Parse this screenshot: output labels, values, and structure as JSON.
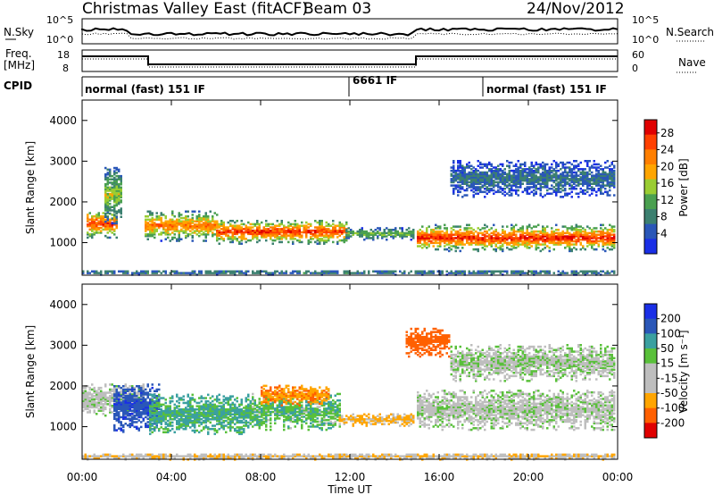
{
  "header": {
    "station": "Christmas Valley East (fitACF)",
    "beam": "Beam 03",
    "date": "24/Nov/2012"
  },
  "noise_panel": {
    "left_label": "N.Sky",
    "right_label": "N.Search",
    "ticks": [
      "10^5",
      "10^0"
    ]
  },
  "freq_panel": {
    "left_label_1": "Freq.",
    "left_label_2": "[MHz]",
    "right_label": "Nave",
    "left_ticks": [
      "18",
      "8"
    ],
    "right_ticks": [
      "60",
      "0"
    ]
  },
  "cpid_panel": {
    "label": "CPID",
    "segments": [
      {
        "text": "normal (fast) 151 IF",
        "start_hour": 0
      },
      {
        "text": "6661 IF",
        "start_hour": 12
      },
      {
        "text": "normal (fast) 151 IF",
        "start_hour": 18
      }
    ]
  },
  "colors": {
    "power": [
      "#1a2fe6",
      "#2a57b8",
      "#3c8070",
      "#4aa050",
      "#9acd32",
      "#ffa500",
      "#ff7f00",
      "#ff4000",
      "#e00000"
    ],
    "velocity": [
      "#1a2fe6",
      "#2a57b8",
      "#3aa0a0",
      "#59c03a",
      "#bebebe",
      "#bebebe",
      "#ffa500",
      "#ff6000",
      "#e00000"
    ]
  },
  "chart_data": [
    {
      "type": "heatmap",
      "name": "power-panel",
      "ylabel": "Slant Range [km]",
      "yticks": [
        "1000",
        "2000",
        "3000",
        "4000"
      ],
      "ylim": [
        200,
        4500
      ],
      "xlim": [
        0,
        24
      ],
      "colorbar_label": "Power [dB]",
      "colorbar_ticks": [
        "4",
        "8",
        "12",
        "16",
        "20",
        "24",
        "28"
      ],
      "echo_bands": [
        {
          "start": 0.2,
          "end": 1.6,
          "center": 1500,
          "width": 350,
          "peak": 26
        },
        {
          "start": 1.0,
          "end": 1.8,
          "center": 2200,
          "width": 700,
          "peak": 14
        },
        {
          "start": 2.8,
          "end": 6.0,
          "center": 1450,
          "width": 380,
          "peak": 22
        },
        {
          "start": 6.0,
          "end": 11.8,
          "center": 1300,
          "width": 300,
          "peak": 26
        },
        {
          "start": 11.8,
          "end": 14.8,
          "center": 1250,
          "width": 150,
          "peak": 12
        },
        {
          "start": 15.0,
          "end": 23.9,
          "center": 1150,
          "width": 330,
          "peak": 27
        },
        {
          "start": 16.5,
          "end": 23.9,
          "center": 2600,
          "width": 450,
          "peak": 6
        },
        {
          "start": 0.0,
          "end": 23.9,
          "center": 300,
          "width": 60,
          "peak": 8
        }
      ]
    },
    {
      "type": "heatmap",
      "name": "velocity-panel",
      "ylabel": "Slant Range [km]",
      "xlabel": "Time UT",
      "yticks": [
        "1000",
        "2000",
        "3000",
        "4000"
      ],
      "xticks": [
        "00:00",
        "04:00",
        "08:00",
        "12:00",
        "16:00",
        "20:00",
        "00:00"
      ],
      "ylim": [
        200,
        4500
      ],
      "xlim": [
        0,
        24
      ],
      "colorbar_label": "Velocity [m s⁻¹]",
      "colorbar_ticks": [
        "200",
        "100",
        "50",
        "15",
        "-15",
        "-50",
        "-100",
        "-200"
      ],
      "echo_bands": [
        {
          "start": 0.0,
          "end": 2.8,
          "center": 1700,
          "width": 400,
          "vel": -5
        },
        {
          "start": 1.4,
          "end": 3.5,
          "center": 1500,
          "width": 600,
          "vel": 180
        },
        {
          "start": 3.0,
          "end": 7.5,
          "center": 1350,
          "width": 500,
          "vel": 60
        },
        {
          "start": 7.5,
          "end": 11.5,
          "center": 1400,
          "width": 450,
          "vel": 40
        },
        {
          "start": 8.0,
          "end": 11.0,
          "center": 1800,
          "width": 250,
          "vel": -90
        },
        {
          "start": 11.5,
          "end": 14.8,
          "center": 1200,
          "width": 150,
          "vel": -60
        },
        {
          "start": 15.0,
          "end": 23.9,
          "center": 1450,
          "width": 500,
          "vel": 0
        },
        {
          "start": 14.5,
          "end": 16.5,
          "center": 3100,
          "width": 350,
          "vel": -150
        },
        {
          "start": 16.5,
          "end": 23.9,
          "center": 2600,
          "width": 450,
          "vel": 5
        },
        {
          "start": 0.0,
          "end": 23.9,
          "center": 300,
          "width": 80,
          "vel": -40
        }
      ]
    }
  ]
}
